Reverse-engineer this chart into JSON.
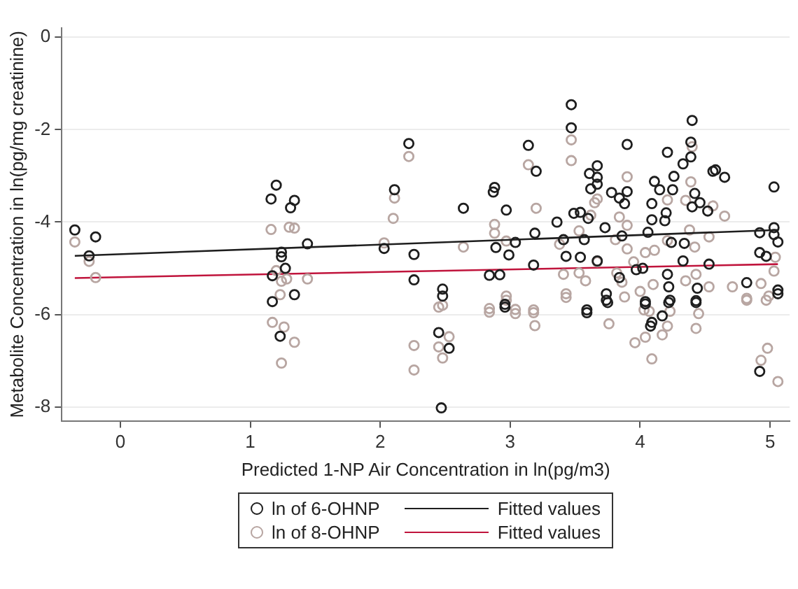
{
  "chart_data": {
    "type": "scatter",
    "xlabel": "Predicted 1-NP Air Concentration in ln(pg/m3)",
    "ylabel": "Metabolite Concentration in ln(pg/mg creatinine)",
    "xlim": [
      -0.45,
      5.15
    ],
    "ylim": [
      -8.3,
      0.2
    ],
    "xticks": [
      0,
      1,
      2,
      3,
      4,
      5
    ],
    "yticks": [
      0,
      -2,
      -4,
      -6,
      -8
    ],
    "grid": "y",
    "legend": "bottom",
    "marker": "circle",
    "series": [
      {
        "name": "ln of 6-OHNP",
        "color": "#1e1e1e",
        "x": [
          -0.35,
          -0.19,
          -0.24,
          1.2,
          1.16,
          1.34,
          1.31,
          1.44,
          1.24,
          1.24,
          1.27,
          1.17,
          1.34,
          1.17,
          1.23,
          2.22,
          2.11,
          2.03,
          2.26,
          2.26,
          3.47,
          3.47,
          4.4,
          3.14,
          3.9,
          4.39,
          4.21,
          4.39,
          4.33,
          3.2,
          3.67,
          3.61,
          3.67,
          3.62,
          3.67,
          2.88,
          2.87,
          4.26,
          4.11,
          4.15,
          4.25,
          4.56,
          4.58,
          4.65,
          5.03,
          3.78,
          3.84,
          3.9,
          3.88,
          2.64,
          2.97,
          4.09,
          4.2,
          4.42,
          4.4,
          4.46,
          4.52,
          3.49,
          3.54,
          3.6,
          3.36,
          4.09,
          4.19,
          3.73,
          3.19,
          3.04,
          2.89,
          3.41,
          3.57,
          3.86,
          4.06,
          4.24,
          4.34,
          4.92,
          5.03,
          5.06,
          5.03,
          2.99,
          3.43,
          3.54,
          3.67,
          3.97,
          4.02,
          4.21,
          4.33,
          4.53,
          4.92,
          4.97,
          2.84,
          2.92,
          3.18,
          3.84,
          4.22,
          4.44,
          4.82,
          5.06,
          2.48,
          2.48,
          3.74,
          3.74,
          2.96,
          3.59,
          4.04,
          4.23,
          4.43,
          2.45,
          2.53,
          2.47,
          2.96,
          3.59,
          3.75,
          4.04,
          4.09,
          4.08,
          4.17,
          4.43,
          4.92,
          4.22,
          5.06
        ],
        "values": [
          -4.17,
          -4.32,
          -4.73,
          -3.2,
          -3.5,
          -3.53,
          -3.69,
          -4.47,
          -4.65,
          -4.75,
          -5.0,
          -5.16,
          -5.57,
          -5.72,
          -6.47,
          -2.3,
          -3.3,
          -4.57,
          -4.7,
          -5.25,
          -1.46,
          -1.96,
          -1.8,
          -2.34,
          -2.32,
          -2.27,
          -2.49,
          -2.59,
          -2.74,
          -2.9,
          -2.78,
          -2.95,
          -3.03,
          -3.28,
          -3.18,
          -3.25,
          -3.35,
          -3.01,
          -3.12,
          -3.3,
          -3.3,
          -2.9,
          -2.87,
          -3.03,
          -3.24,
          -3.36,
          -3.48,
          -3.34,
          -3.6,
          -3.7,
          -3.74,
          -3.6,
          -3.8,
          -3.38,
          -3.67,
          -3.58,
          -3.76,
          -3.81,
          -3.79,
          -3.92,
          -4.0,
          -3.95,
          -3.97,
          -4.12,
          -4.24,
          -4.44,
          -4.55,
          -4.38,
          -4.38,
          -4.3,
          -4.22,
          -4.44,
          -4.46,
          -4.23,
          -4.12,
          -4.43,
          -4.27,
          -4.71,
          -4.74,
          -4.76,
          -4.84,
          -5.03,
          -5.0,
          -5.13,
          -4.84,
          -4.91,
          -4.66,
          -4.74,
          -5.15,
          -5.14,
          -4.93,
          -5.2,
          -5.4,
          -5.43,
          -5.31,
          -5.47,
          -5.45,
          -5.6,
          -5.55,
          -5.69,
          -5.78,
          -5.9,
          -5.72,
          -5.69,
          -5.7,
          -6.39,
          -6.73,
          -8.02,
          -5.84,
          -5.96,
          -5.74,
          -5.77,
          -6.17,
          -6.25,
          -6.03,
          -5.74,
          -7.23,
          -5.74,
          -5.55
        ]
      },
      {
        "name": "Fitted values",
        "type": "line",
        "marker": "none",
        "line_style": "solid",
        "color": "#1e1e1e",
        "x": [
          -0.35,
          5.06
        ],
        "values": [
          -4.73,
          -4.17
        ]
      },
      {
        "name": "ln of 8-OHNP",
        "color": "#b8a6a2",
        "x": [
          -0.35,
          -0.24,
          -0.19,
          1.16,
          1.3,
          1.34,
          1.2,
          1.24,
          1.28,
          1.44,
          1.23,
          1.17,
          1.26,
          1.34,
          1.24,
          2.22,
          2.11,
          2.1,
          2.03,
          2.26,
          2.26,
          3.47,
          3.47,
          3.14,
          4.4,
          3.9,
          3.67,
          3.65,
          3.2,
          2.88,
          2.88,
          2.64,
          4.39,
          4.35,
          4.21,
          4.56,
          4.65,
          3.84,
          3.9,
          3.62,
          2.97,
          3.38,
          3.53,
          3.81,
          3.9,
          4.21,
          4.38,
          4.42,
          4.53,
          4.11,
          4.04,
          3.95,
          3.67,
          3.41,
          3.53,
          3.58,
          3.86,
          3.82,
          4.0,
          4.1,
          4.35,
          4.43,
          4.53,
          4.71,
          5.04,
          5.03,
          4.93,
          4.82,
          4.99,
          3.43,
          3.18,
          3.04,
          2.84,
          2.97,
          2.48,
          2.45,
          2.53,
          2.45,
          2.48,
          2.84,
          2.97,
          3.04,
          3.18,
          3.19,
          3.43,
          3.76,
          3.88,
          3.96,
          4.04,
          4.09,
          4.03,
          4.07,
          4.21,
          4.17,
          4.23,
          4.45,
          4.43,
          4.82,
          4.97,
          4.98,
          4.93,
          5.06
        ],
        "values": [
          -4.43,
          -4.85,
          -5.2,
          -4.16,
          -4.11,
          -4.13,
          -5.05,
          -5.28,
          -5.23,
          -5.23,
          -5.57,
          -6.17,
          -6.27,
          -6.6,
          -7.05,
          -2.58,
          -3.48,
          -3.92,
          -4.45,
          -6.67,
          -7.2,
          -2.22,
          -2.67,
          -2.76,
          -2.37,
          -3.02,
          -3.5,
          -3.58,
          -3.7,
          -4.05,
          -4.24,
          -4.54,
          -3.13,
          -3.53,
          -3.52,
          -3.65,
          -3.87,
          -3.89,
          -4.07,
          -3.85,
          -4.41,
          -4.48,
          -4.19,
          -4.38,
          -4.58,
          -4.4,
          -4.17,
          -4.54,
          -4.32,
          -4.61,
          -4.66,
          -4.86,
          -4.86,
          -5.13,
          -5.1,
          -5.27,
          -5.3,
          -5.1,
          -5.5,
          -5.35,
          -5.27,
          -5.13,
          -5.4,
          -5.4,
          -4.76,
          -5.06,
          -5.33,
          -5.65,
          -5.6,
          -5.55,
          -5.9,
          -5.89,
          -5.87,
          -5.6,
          -5.8,
          -5.84,
          -6.48,
          -6.7,
          -6.94,
          -5.95,
          -5.69,
          -5.98,
          -5.96,
          -6.24,
          -5.63,
          -6.2,
          -5.62,
          -6.61,
          -6.49,
          -6.96,
          -5.9,
          -5.93,
          -6.25,
          -6.44,
          -5.93,
          -5.98,
          -6.3,
          -5.69,
          -5.69,
          -6.73,
          -6.99,
          -7.45
        ]
      },
      {
        "name": "Fitted values",
        "type": "line",
        "marker": "none",
        "line_style": "solid",
        "color": "#c0143c",
        "x": [
          -0.35,
          5.06
        ],
        "values": [
          -5.21,
          -4.91
        ]
      }
    ]
  }
}
